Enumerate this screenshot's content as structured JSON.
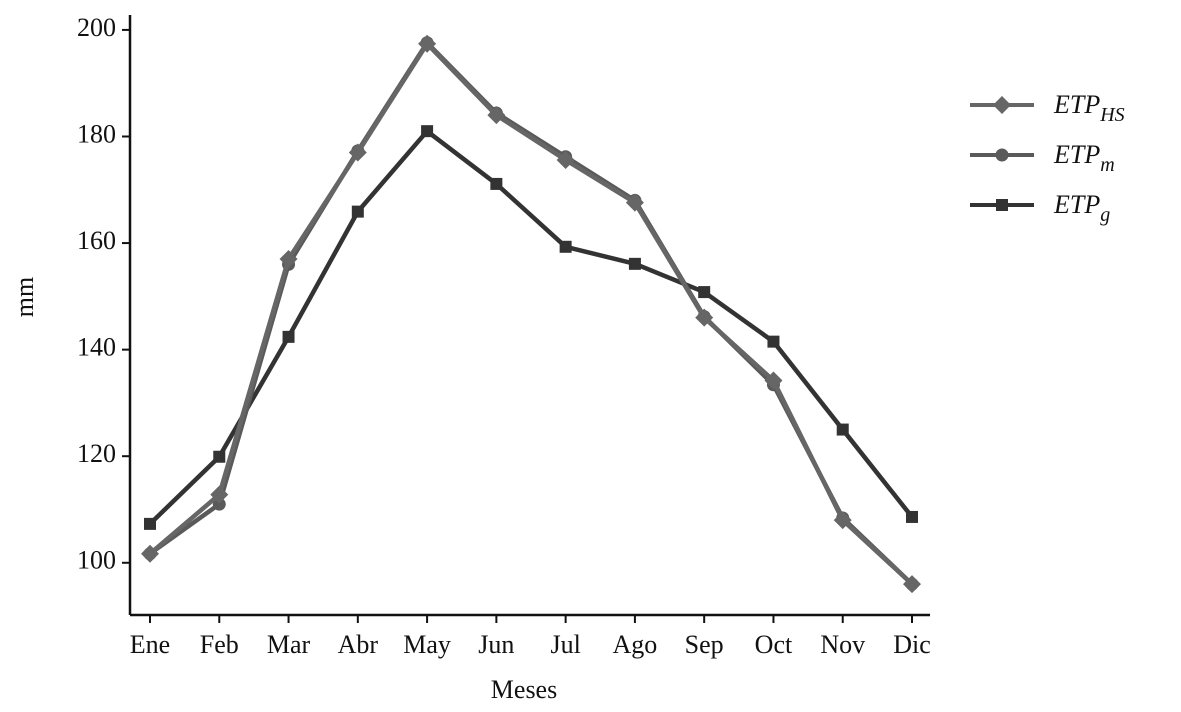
{
  "chart_data": {
    "type": "line",
    "x_label": "Meses",
    "y_label": "mm",
    "categories": [
      "Ene",
      "Feb",
      "Mar",
      "Abr",
      "May",
      "Jun",
      "Jul",
      "Ago",
      "Sep",
      "Oct",
      "Nov",
      "Dic"
    ],
    "series": [
      {
        "name": "ETP_HS",
        "color": "#666666",
        "marker": "diamond",
        "values": [
          101.7,
          112.8,
          157,
          177,
          197.4,
          184,
          175.6,
          167.6,
          146,
          134.2,
          108,
          96
        ]
      },
      {
        "name": "ETP_m",
        "color": "#5a5a5a",
        "marker": "circle",
        "values": [
          101.7,
          111,
          156,
          177.3,
          197.6,
          184.4,
          176.2,
          168,
          146.2,
          133.4,
          108.4,
          96
        ]
      },
      {
        "name": "ETP_g",
        "color": "#333333",
        "marker": "square",
        "values": [
          107.3,
          119.9,
          142.4,
          165.9,
          181,
          171.1,
          159.3,
          156.1,
          150.8,
          141.5,
          125,
          108.6
        ]
      }
    ],
    "ylim": [
      90.2,
      202.8
    ],
    "yticks": [
      100,
      120,
      140,
      160,
      180,
      200
    ],
    "grid": false
  }
}
